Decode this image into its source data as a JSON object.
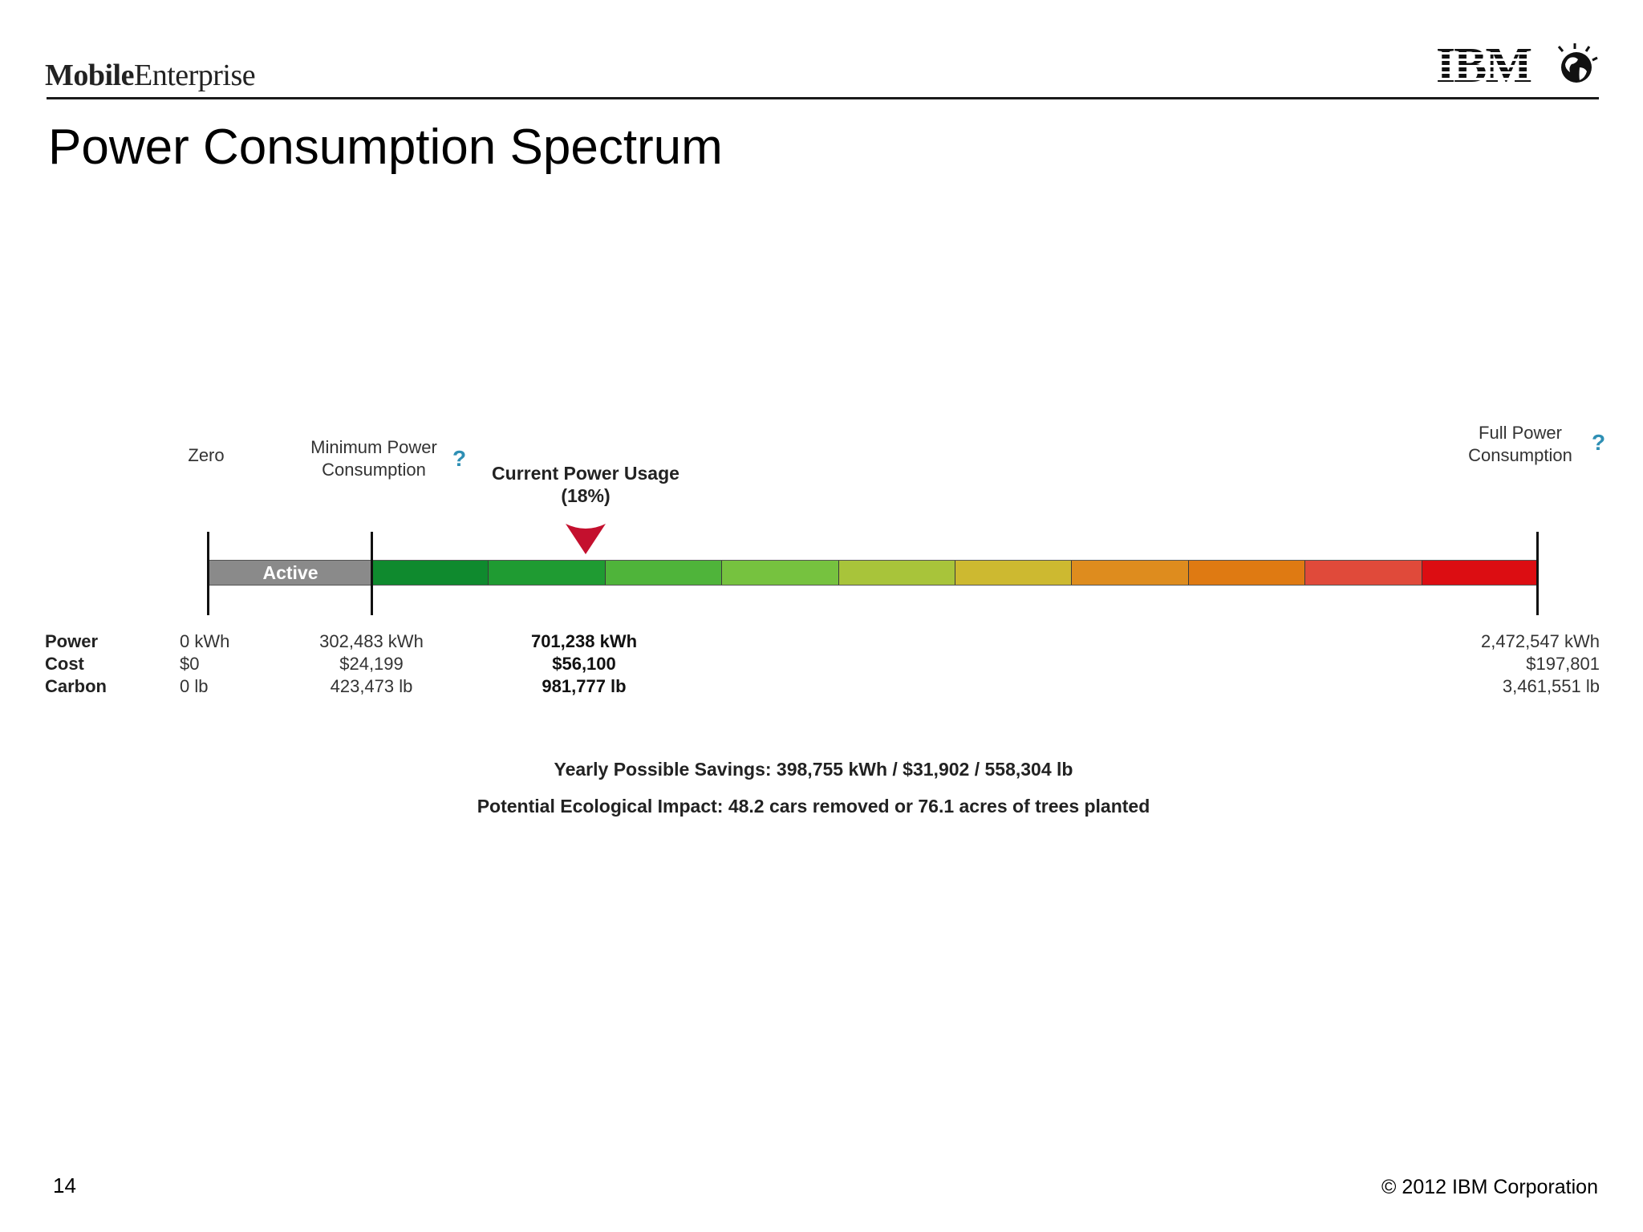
{
  "header": {
    "brand_bold": "Mobile",
    "brand_regular": "Enterprise",
    "logo_text": "IBM"
  },
  "slide": {
    "title": "Power Consumption Spectrum",
    "page_number": "14",
    "copyright": "© 2012 IBM Corporation"
  },
  "spectrum": {
    "label_zero": "Zero",
    "label_min_line1": "Minimum Power",
    "label_min_line2": "Consumption",
    "label_current_line1": "Current Power Usage",
    "label_current_line2": "(18%)",
    "label_full_line1": "Full Power",
    "label_full_line2": "Consumption",
    "help_symbol": "?",
    "active_label": "Active",
    "current_percent": 18,
    "segment_colors": [
      "#8a8a8a",
      "#0f8a2e",
      "#1f9b32",
      "#4fb43a",
      "#76c23f",
      "#a8c43a",
      "#cdb930",
      "#de8c1e",
      "#df7a12",
      "#e04a3a",
      "#dc0d12"
    ]
  },
  "rows": {
    "power_label": "Power",
    "cost_label": "Cost",
    "carbon_label": "Carbon"
  },
  "values": {
    "zero": {
      "power": "0 kWh",
      "cost": "$0",
      "carbon": "0 lb"
    },
    "minimum": {
      "power": "302,483 kWh",
      "cost": "$24,199",
      "carbon": "423,473 lb"
    },
    "current": {
      "power": "701,238 kWh",
      "cost": "$56,100",
      "carbon": "981,777 lb"
    },
    "full": {
      "power": "2,472,547 kWh",
      "cost": "$197,801",
      "carbon": "3,461,551 lb"
    }
  },
  "summary": {
    "savings": "Yearly Possible Savings: 398,755 kWh / $31,902 / 558,304 lb",
    "impact": "Potential Ecological Impact: 48.2 cars removed or 76.1 acres of trees planted"
  }
}
